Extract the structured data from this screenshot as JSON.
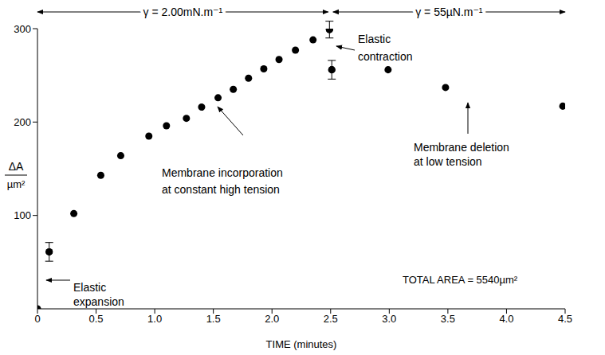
{
  "chart_data": {
    "type": "scatter",
    "x_label": "TIME (minutes)",
    "y_label": {
      "numerator": "ΔA",
      "denominator": "µm²"
    },
    "x": [
      0,
      0.1,
      0.31,
      0.54,
      0.71,
      0.95,
      1.1,
      1.27,
      1.4,
      1.54,
      1.67,
      1.8,
      1.93,
      2.06,
      2.2,
      2.35,
      2.49,
      2.51,
      2.99,
      3.48,
      4.48
    ],
    "values": [
      0,
      61,
      102,
      143,
      164,
      185,
      196,
      204,
      216,
      226,
      235,
      247,
      257,
      267,
      277,
      288,
      299,
      256,
      256,
      237,
      217
    ],
    "errors": [
      null,
      10,
      null,
      null,
      null,
      null,
      null,
      null,
      null,
      null,
      null,
      null,
      null,
      null,
      null,
      null,
      9,
      10,
      null,
      null,
      null
    ],
    "color": "#000000",
    "marker": "circle",
    "xlim": [
      0,
      4.5
    ],
    "xticks": [
      0,
      0.5,
      {
        "value": 1,
        "label": "1.0"
      },
      1.5,
      {
        "value": 2,
        "label": "2.0"
      },
      2.5,
      {
        "value": 3,
        "label": "3.0"
      },
      3.5,
      {
        "value": 4,
        "label": "4.0"
      },
      4.5
    ],
    "ylim": [
      0,
      300
    ],
    "yticks": [
      100,
      200,
      300
    ],
    "grid": false,
    "tension_periods": [
      {
        "label": "γ = 2.00mN.m⁻¹",
        "start": 0,
        "end": 2.5
      },
      {
        "label": "γ = 55µN.m⁻¹",
        "start": 2.5,
        "end": 4.5
      }
    ],
    "annotations": [
      {
        "text": [
          "Elastic",
          "expansion"
        ]
      },
      {
        "text": [
          "Membrane incorporation",
          "at constant high tension"
        ]
      },
      {
        "text": [
          "Elastic",
          "contraction"
        ]
      },
      {
        "text": [
          "Membrane deletion",
          "at low tension"
        ]
      }
    ],
    "note": "TOTAL AREA = 5540µm²"
  }
}
